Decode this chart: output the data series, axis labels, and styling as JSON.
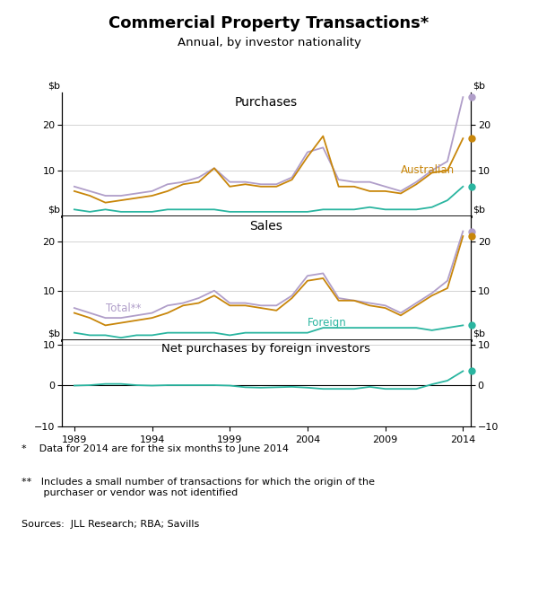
{
  "title": "Commercial Property Transactions*",
  "subtitle": "Annual, by investor nationality",
  "years": [
    1989,
    1990,
    1991,
    1992,
    1993,
    1994,
    1995,
    1996,
    1997,
    1998,
    1999,
    2000,
    2001,
    2002,
    2003,
    2004,
    2005,
    2006,
    2007,
    2008,
    2009,
    2010,
    2011,
    2012,
    2013,
    2014
  ],
  "purchases_total": [
    6.5,
    5.5,
    4.5,
    4.5,
    5.0,
    5.5,
    7.0,
    7.5,
    8.5,
    10.5,
    7.5,
    7.5,
    7.0,
    7.0,
    8.5,
    14.0,
    15.0,
    8.0,
    7.5,
    7.5,
    6.5,
    5.5,
    7.5,
    10.0,
    12.0,
    26.0
  ],
  "purchases_australian": [
    5.5,
    4.5,
    3.0,
    3.5,
    4.0,
    4.5,
    5.5,
    7.0,
    7.5,
    10.5,
    6.5,
    7.0,
    6.5,
    6.5,
    8.0,
    13.0,
    17.5,
    6.5,
    6.5,
    5.5,
    5.5,
    5.0,
    7.0,
    9.5,
    10.0,
    17.0
  ],
  "purchases_foreign": [
    1.5,
    1.0,
    1.5,
    1.0,
    1.0,
    1.0,
    1.5,
    1.5,
    1.5,
    1.5,
    1.0,
    1.0,
    1.0,
    1.0,
    1.0,
    1.0,
    1.5,
    1.5,
    1.5,
    2.0,
    1.5,
    1.5,
    1.5,
    2.0,
    3.5,
    6.5
  ],
  "sales_total": [
    6.5,
    5.5,
    4.5,
    4.5,
    5.0,
    5.5,
    7.0,
    7.5,
    8.5,
    10.0,
    7.5,
    7.5,
    7.0,
    7.0,
    9.0,
    13.0,
    13.5,
    8.5,
    8.0,
    7.5,
    7.0,
    5.5,
    7.5,
    9.5,
    12.0,
    22.0
  ],
  "sales_australian": [
    5.5,
    4.5,
    3.0,
    3.5,
    4.0,
    4.5,
    5.5,
    7.0,
    7.5,
    9.0,
    7.0,
    7.0,
    6.5,
    6.0,
    8.5,
    12.0,
    12.5,
    8.0,
    8.0,
    7.0,
    6.5,
    5.0,
    7.0,
    9.0,
    10.5,
    21.0
  ],
  "sales_foreign": [
    1.5,
    1.0,
    1.0,
    0.5,
    1.0,
    1.0,
    1.5,
    1.5,
    1.5,
    1.5,
    1.0,
    1.5,
    1.5,
    1.5,
    1.5,
    1.5,
    2.5,
    2.5,
    2.5,
    2.5,
    2.5,
    2.5,
    2.5,
    2.0,
    2.5,
    3.0
  ],
  "net_foreign": [
    0.0,
    0.1,
    0.4,
    0.4,
    0.1,
    0.0,
    0.1,
    0.1,
    0.1,
    0.1,
    0.0,
    -0.4,
    -0.5,
    -0.4,
    -0.3,
    -0.5,
    -0.8,
    -0.8,
    -0.8,
    -0.3,
    -0.8,
    -0.8,
    -0.8,
    0.3,
    1.2,
    3.5
  ],
  "color_total": "#b09ec9",
  "color_australian": "#c8860a",
  "color_foreign": "#2ab5a0",
  "footnote1": "*   Data for 2014 are for the six months to June 2014",
  "footnote2": "**  Includes a small number of transactions for which the origin of the\n      purchaser or vendor was not identified",
  "sources": "Sources:  JLL Research; RBA; Savills"
}
